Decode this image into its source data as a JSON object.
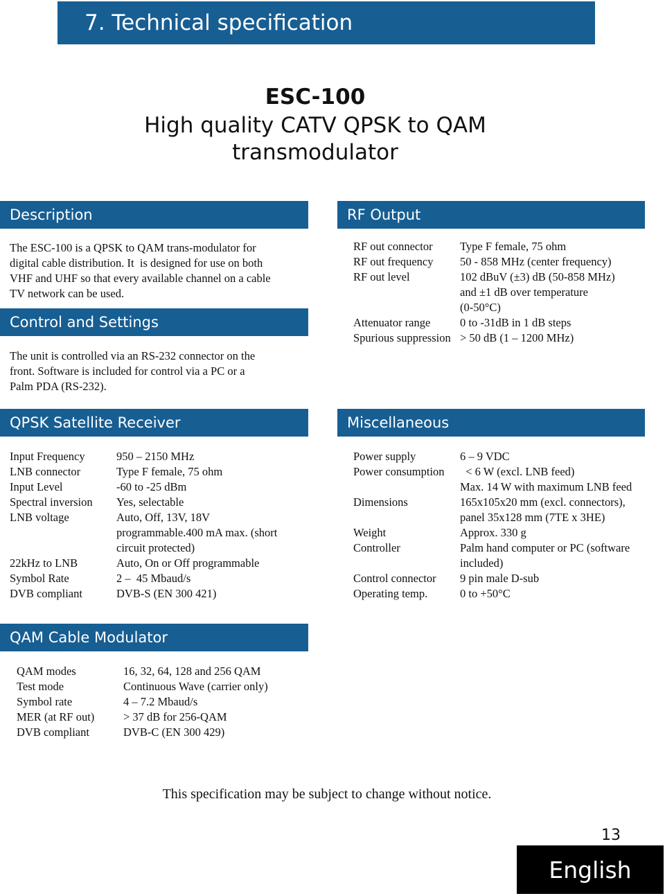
{
  "header": {
    "title": "7. Technical specification"
  },
  "product": {
    "name": "ESC-100",
    "subtitle": [
      "High quality CATV QPSK to QAM",
      "transmodulator"
    ]
  },
  "description": {
    "title": "Description",
    "lines": [
      "The ESC-100 is a QPSK to QAM trans-modulator for",
      "digital cable distribution. It  is designed for use on both",
      "VHF and UHF so that every available channel on a cable",
      "TV network can be used."
    ]
  },
  "control": {
    "title": "Control and Settings",
    "lines": [
      "The unit is controlled via an RS-232 connector on the",
      "front. Software is included for control via a PC or a",
      "Palm PDA (RS-232)."
    ]
  },
  "rf_output": {
    "title": "RF Output",
    "rows": [
      {
        "label": "RF out connector",
        "value": [
          "Type F female, 75 ohm"
        ]
      },
      {
        "label": "RF out frequency",
        "value": [
          "50 - 858 MHz (center frequency)"
        ]
      },
      {
        "label": "RF out level",
        "value": [
          "102 dBuV (±3) dB (50-858 MHz)",
          "and ±1 dB over temperature",
          "(0-50°C)"
        ]
      },
      {
        "label": "Attenuator range",
        "value": [
          "0 to -31dB in 1 dB steps"
        ]
      },
      {
        "label": "Spurious suppression",
        "value": [
          "> 50 dB (1 – 1200 MHz)"
        ]
      }
    ]
  },
  "qpsk": {
    "title": "QPSK Satellite Receiver",
    "rows": [
      {
        "label": "Input Frequency",
        "value": [
          "950 – 2150 MHz"
        ]
      },
      {
        "label": "LNB connector",
        "value": [
          "Type F female, 75 ohm"
        ]
      },
      {
        "label": "Input Level",
        "value": [
          "-60 to -25 dBm"
        ]
      },
      {
        "label": "Spectral inversion",
        "value": [
          "Yes, selectable"
        ]
      },
      {
        "label": "LNB voltage",
        "value": [
          "Auto, Off, 13V, 18V",
          "programmable.400 mA max. (short",
          "circuit protected)"
        ]
      },
      {
        "label": "22kHz to LNB",
        "value": [
          "Auto, On or Off programmable"
        ]
      },
      {
        "label": "Symbol Rate",
        "value": [
          "2 –  45 Mbaud/s"
        ]
      },
      {
        "label": "DVB compliant",
        "value": [
          "DVB-S (EN 300 421)"
        ]
      }
    ]
  },
  "misc": {
    "title": "Miscellaneous",
    "rows": [
      {
        "label": "Power supply",
        "value": [
          "6 – 9 VDC"
        ]
      },
      {
        "label": "Power consumption",
        "value": [
          "  < 6 W (excl. LNB feed)",
          "Max. 14 W with maximum LNB feed"
        ]
      },
      {
        "label": "Dimensions",
        "value": [
          "165x105x20 mm (excl. connectors),",
          "panel 35x128 mm (7TE x 3HE)"
        ]
      },
      {
        "label": "Weight",
        "value": [
          "Approx. 330 g"
        ]
      },
      {
        "label": "Controller",
        "value": [
          "Palm hand computer or PC (software",
          "included)"
        ]
      },
      {
        "label": "Control connector",
        "value": [
          "9 pin male D-sub"
        ]
      },
      {
        "label": "Operating temp.",
        "value": [
          "0 to +50°C"
        ]
      }
    ]
  },
  "qam": {
    "title": "QAM Cable Modulator",
    "rows": [
      {
        "label": "QAM modes",
        "value": [
          "16, 32, 64, 128 and 256 QAM"
        ]
      },
      {
        "label": "Test mode",
        "value": [
          "Continuous Wave (carrier only)"
        ]
      },
      {
        "label": "Symbol rate",
        "value": [
          "4 – 7.2 Mbaud/s"
        ]
      },
      {
        "label": "MER (at RF out)",
        "value": [
          "> 37 dB for 256-QAM"
        ]
      },
      {
        "label": "DVB compliant",
        "value": [
          "DVB-C (EN 300 429)"
        ]
      }
    ]
  },
  "footer": {
    "notice": "This specification may be subject to change without notice.",
    "page_number": "13",
    "language": "English"
  }
}
